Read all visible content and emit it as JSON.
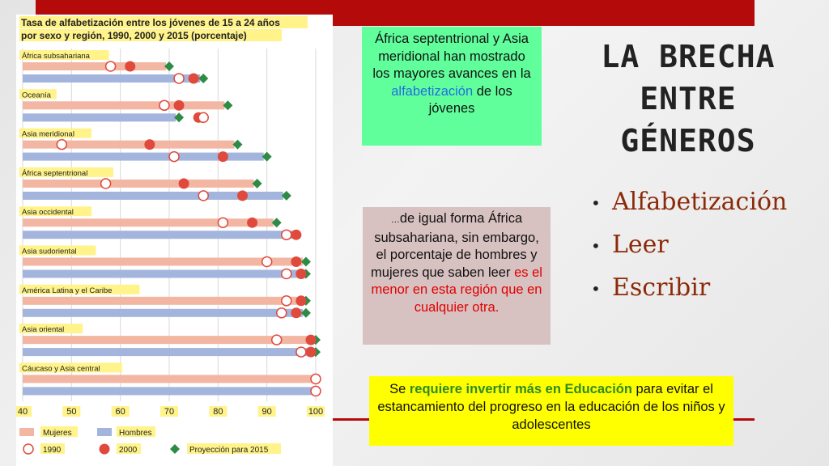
{
  "colors": {
    "accent_red": "#b50a0a",
    "title_text": "#222222",
    "bullet_text": "#8b2a0a",
    "box1_bg": "#61ff9c",
    "box2_bg": "#d8c1c1",
    "box3_bg": "#ffff00",
    "link_blue": "#1f6fe0",
    "emph_red": "#e00000",
    "emph_green": "#2e8b1f",
    "bar_women": "#f2b6a3",
    "bar_men": "#a3b4dd",
    "marker_2000": "#e04a3c",
    "marker_proj": "#2e8b46",
    "chart_title_bg": "#fff38a"
  },
  "slide": {
    "title": "LA BRECHA ENTRE GÉNEROS",
    "bullets": [
      "Alfabetización",
      "Leer",
      "Escribir"
    ]
  },
  "box1": {
    "text_before": "África septentrional y Asia meridional han mostrado los mayores avances en la ",
    "link_text": "alfabetización",
    "text_after": " de los jóvenes"
  },
  "box2": {
    "ellipsis": "…",
    "text_before": "de igual forma África subsahariana, sin embargo, el porcentaje de hombres y mujeres que saben leer ",
    "emphasis": "es el menor en esta región que en cualquier otra."
  },
  "box3": {
    "text_before": "Se ",
    "emphasis": "requiere invertir más en Educación",
    "text_after": " para evitar el estancamiento del progreso en la educación de los niños y adolescentes"
  },
  "chart_data": {
    "type": "dot-bar",
    "title": "Tasa de alfabetización entre los jóvenes de 15 a 24 años por sexo y región, 1990, 2000 y 2015 (porcentaje)",
    "xlim": [
      40,
      100
    ],
    "xticks": [
      "40",
      "50",
      "60",
      "70",
      "80",
      "90",
      "100"
    ],
    "legend": {
      "bars": [
        {
          "key": "women",
          "label": "Mujeres"
        },
        {
          "key": "men",
          "label": "Hombres"
        }
      ],
      "markers": [
        {
          "key": "y1990",
          "label": "1990"
        },
        {
          "key": "y2000",
          "label": "2000"
        },
        {
          "key": "proj2015",
          "label": "Proyección para 2015"
        }
      ]
    },
    "regions": [
      {
        "name": "África subsahariana",
        "women": {
          "y1990": 58,
          "y2000": 62,
          "proj2015": 70
        },
        "men": {
          "y1990": 72,
          "y2000": 75,
          "proj2015": 77
        }
      },
      {
        "name": "Oceanía",
        "women": {
          "y1990": 69,
          "y2000": 72,
          "proj2015": 82
        },
        "men": {
          "y1990": 77,
          "y2000": 76,
          "proj2015": 72
        }
      },
      {
        "name": "Asia meridional",
        "women": {
          "y1990": 48,
          "y2000": 66,
          "proj2015": 84
        },
        "men": {
          "y1990": 71,
          "y2000": 81,
          "proj2015": 90
        }
      },
      {
        "name": "África septentrional",
        "women": {
          "y1990": 57,
          "y2000": 73,
          "proj2015": 88
        },
        "men": {
          "y1990": 77,
          "y2000": 85,
          "proj2015": 94
        }
      },
      {
        "name": "Asia occidental",
        "women": {
          "y1990": 81,
          "y2000": 87,
          "proj2015": 92
        },
        "men": {
          "y1990": 94,
          "y2000": 96,
          "proj2015": 96
        }
      },
      {
        "name": "Asia sudoriental",
        "women": {
          "y1990": 90,
          "y2000": 96,
          "proj2015": 98
        },
        "men": {
          "y1990": 94,
          "y2000": 97,
          "proj2015": 98
        }
      },
      {
        "name": "América Latina y el Caribe",
        "women": {
          "y1990": 94,
          "y2000": 97,
          "proj2015": 98
        },
        "men": {
          "y1990": 93,
          "y2000": 96,
          "proj2015": 98
        }
      },
      {
        "name": "Asia oriental",
        "women": {
          "y1990": 92,
          "y2000": 99,
          "proj2015": 100
        },
        "men": {
          "y1990": 97,
          "y2000": 99,
          "proj2015": 100
        }
      },
      {
        "name": "Cáucaso y Asia central",
        "women": {
          "y1990": 100,
          "y2000": 100,
          "proj2015": 100
        },
        "men": {
          "y1990": 100,
          "y2000": 100,
          "proj2015": 100
        }
      }
    ]
  }
}
